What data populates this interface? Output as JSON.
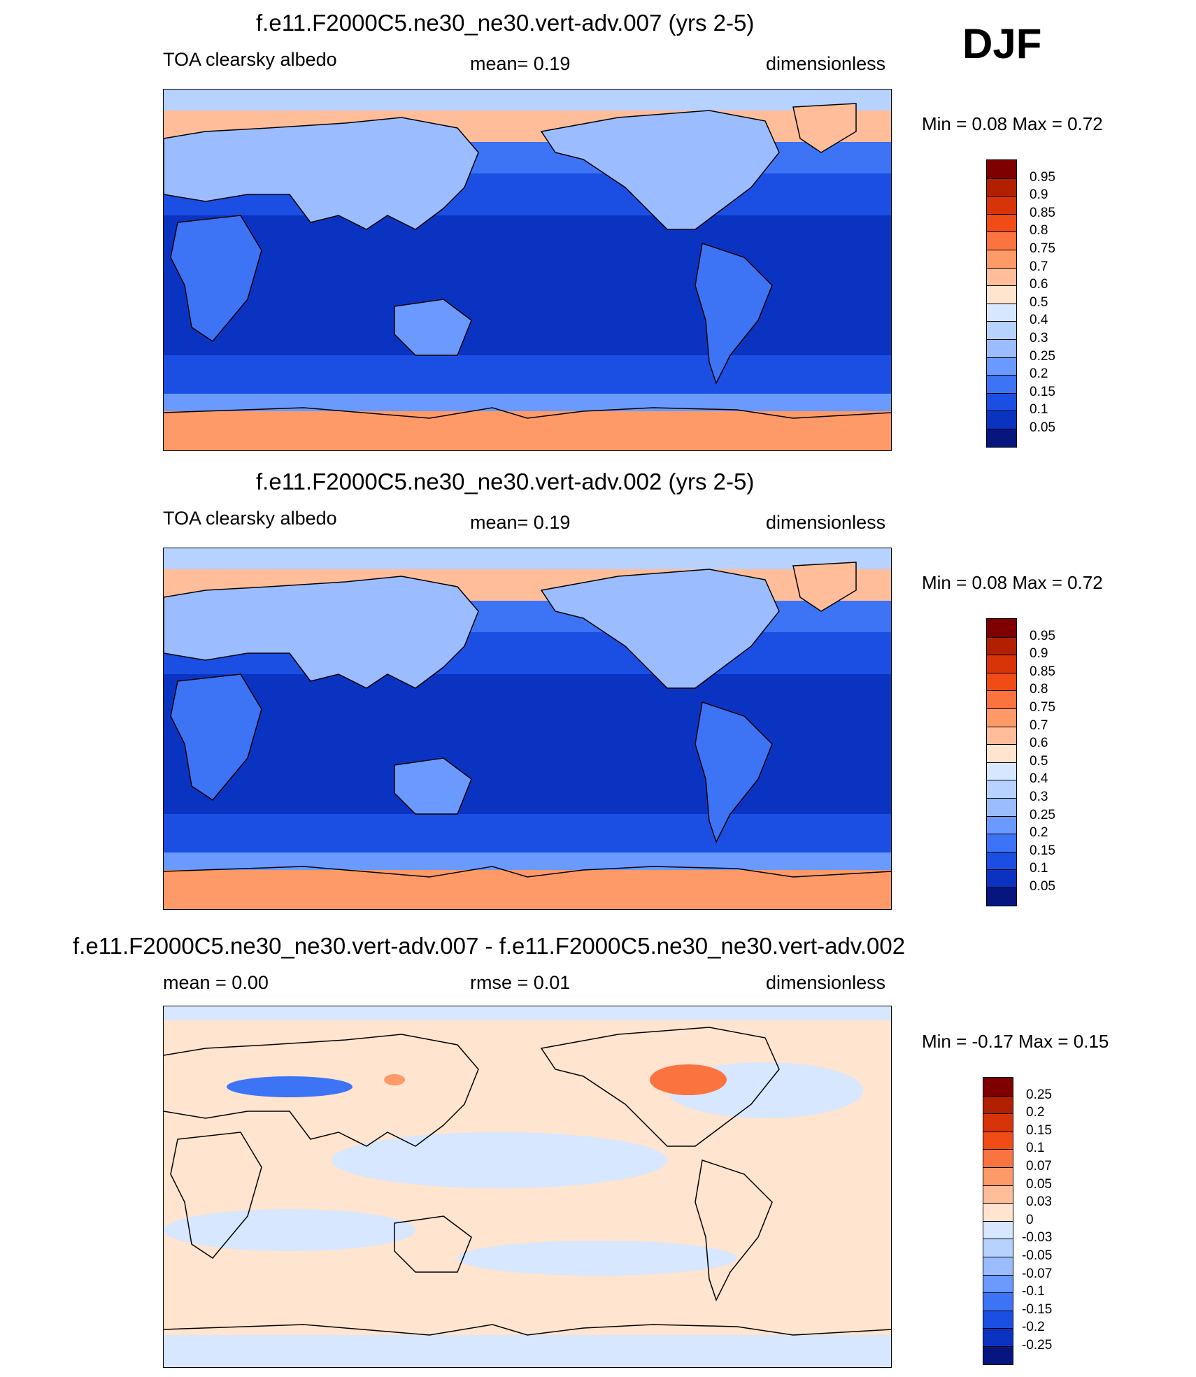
{
  "season": "DJF",
  "colors": {
    "land_outline": "#000000",
    "frame": "#000000"
  },
  "chart_data": [
    {
      "type": "heatmap",
      "title": "f.e11.F2000C5.ne30_ne30.vert-adv.007 (yrs 2-5)",
      "left_label": "TOA clearsky albedo",
      "center_label": "mean=   0.19",
      "right_label": "dimensionless",
      "minmax": "Min =    0.08 Max =    0.72",
      "min": 0.08,
      "max": 0.72,
      "mean": 0.19,
      "colorbar": {
        "labels": [
          "0.95",
          "0.9",
          "0.85",
          "0.8",
          "0.75",
          "0.7",
          "0.6",
          "0.5",
          "0.4",
          "0.3",
          "0.25",
          "0.2",
          "0.15",
          "0.1",
          "0.05"
        ],
        "colors": [
          "#7f0000",
          "#b22000",
          "#d8340a",
          "#f14b16",
          "#fb7440",
          "#fd9a68",
          "#ffbd9a",
          "#ffe4cf",
          "#d6e7ff",
          "#b8d2ff",
          "#9bbcff",
          "#6b9aff",
          "#3d73f5",
          "#1b4fe3",
          "#0b33c2",
          "#07157f"
        ]
      }
    },
    {
      "type": "heatmap",
      "title": "f.e11.F2000C5.ne30_ne30.vert-adv.002 (yrs 2-5)",
      "left_label": "TOA clearsky albedo",
      "center_label": "mean=   0.19",
      "right_label": "dimensionless",
      "minmax": "Min =    0.08 Max =    0.72",
      "min": 0.08,
      "max": 0.72,
      "mean": 0.19,
      "colorbar": {
        "labels": [
          "0.95",
          "0.9",
          "0.85",
          "0.8",
          "0.75",
          "0.7",
          "0.6",
          "0.5",
          "0.4",
          "0.3",
          "0.25",
          "0.2",
          "0.15",
          "0.1",
          "0.05"
        ],
        "colors": [
          "#7f0000",
          "#b22000",
          "#d8340a",
          "#f14b16",
          "#fb7440",
          "#fd9a68",
          "#ffbd9a",
          "#ffe4cf",
          "#d6e7ff",
          "#b8d2ff",
          "#9bbcff",
          "#6b9aff",
          "#3d73f5",
          "#1b4fe3",
          "#0b33c2",
          "#07157f"
        ]
      }
    },
    {
      "type": "heatmap",
      "title": "f.e11.F2000C5.ne30_ne30.vert-adv.007 - f.e11.F2000C5.ne30_ne30.vert-adv.002",
      "left_label": "mean =    0.00",
      "center_label": "rmse =    0.01",
      "right_label": "dimensionless",
      "minmax": "Min =  -0.17 Max =    0.15",
      "min": -0.17,
      "max": 0.15,
      "mean": 0.0,
      "rmse": 0.01,
      "colorbar": {
        "labels": [
          "0.25",
          "0.2",
          "0.15",
          "0.1",
          "0.07",
          "0.05",
          "0.03",
          "0",
          "-0.03",
          "-0.05",
          "-0.07",
          "-0.1",
          "-0.15",
          "-0.2",
          "-0.25"
        ],
        "colors": [
          "#7f0000",
          "#b22000",
          "#d8340a",
          "#f14b16",
          "#fb7440",
          "#fd9a68",
          "#ffbd9a",
          "#ffe4cf",
          "#d6e7ff",
          "#b8d2ff",
          "#9bbcff",
          "#6b9aff",
          "#3d73f5",
          "#1b4fe3",
          "#0b33c2",
          "#07157f"
        ]
      }
    }
  ]
}
